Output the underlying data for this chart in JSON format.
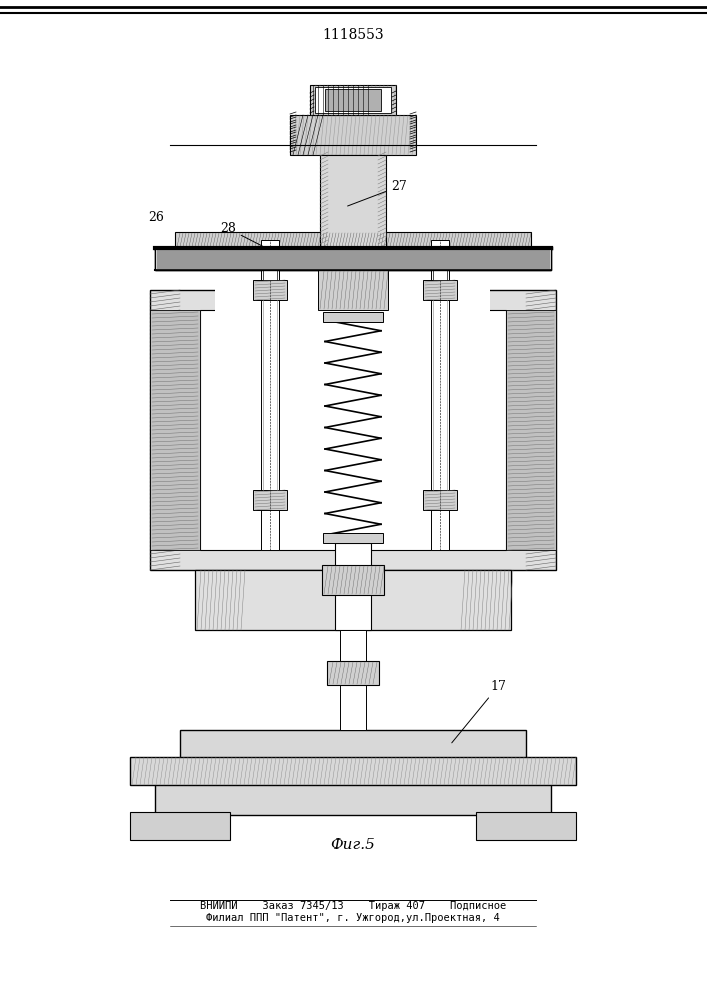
{
  "title": "1118553",
  "fig_label": "Фиг.5",
  "label_17": "17",
  "label_26": "26",
  "label_27": "27",
  "label_28": "28",
  "footer_line1": "ВНИИПИ    Заказ 7345/13    Тираж 407    Подписное",
  "footer_line2": "Филиал ППП \"Патент\", г. Ужгород,ул.Проектная, 4",
  "bg_color": "#ffffff",
  "line_color": "#000000",
  "hatch_color": "#000000",
  "fill_light": "#e8e8e8",
  "fill_medium": "#c8c8c8",
  "fill_dark": "#a0a0a0"
}
